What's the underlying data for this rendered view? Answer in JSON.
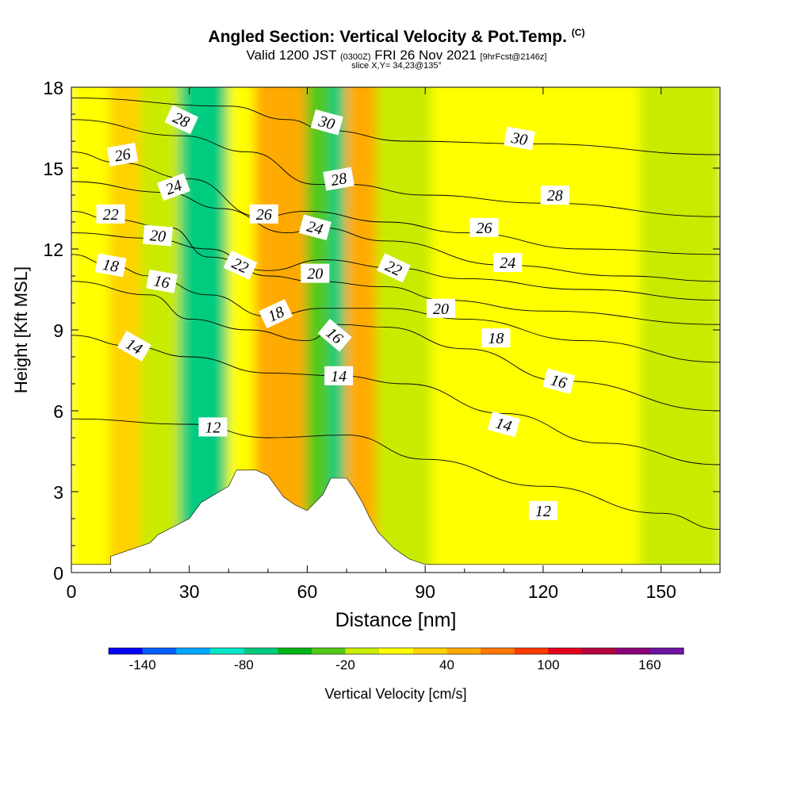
{
  "title": {
    "main": "Angled Section: Vertical Velocity & Pot.Temp.",
    "copyright": "(C)",
    "valid_prefix": "Valid 1200 JST",
    "valid_utc": "(0300Z)",
    "valid_date": "FRI 26 Nov 2021",
    "forecast": "[9hrFcst@2146z]",
    "slice": "slice X,Y= 34,23@135°"
  },
  "chart_data": {
    "type": "heatmap",
    "xlabel": "Distance [nm]",
    "ylabel": "Height [Kft MSL]",
    "xlim": [
      0,
      165
    ],
    "ylim": [
      0,
      18
    ],
    "x_ticks": [
      "0",
      "30",
      "60",
      "90",
      "120",
      "150"
    ],
    "y_ticks": [
      "0",
      "3",
      "6",
      "9",
      "12",
      "15",
      "18"
    ],
    "x_tick_values": [
      0,
      30,
      60,
      90,
      120,
      150
    ],
    "y_tick_values": [
      0,
      3,
      6,
      9,
      12,
      15,
      18
    ],
    "colorbar": {
      "label": "Vertical Velocity [cm/s]",
      "tick_labels": [
        "-140",
        "-80",
        "-20",
        "40",
        "100",
        "160"
      ],
      "tick_values": [
        -140,
        -80,
        -20,
        40,
        100,
        160
      ],
      "bounds": [
        -160,
        -140,
        -120,
        -100,
        -80,
        -60,
        -40,
        -20,
        0,
        20,
        40,
        60,
        80,
        100,
        120,
        140,
        160,
        180
      ],
      "colors": [
        "#0000ff",
        "#0060ff",
        "#00a8ff",
        "#00e6c8",
        "#00cc80",
        "#00b418",
        "#52c81a",
        "#c8eb00",
        "#ffff00",
        "#ffd200",
        "#ffaa00",
        "#ff7800",
        "#ff3c00",
        "#e6001e",
        "#b4003c",
        "#8c0078",
        "#6e14a0"
      ]
    },
    "velocity_bands": [
      {
        "x": [
          0,
          10
        ],
        "value": 10
      },
      {
        "x": [
          10,
          18
        ],
        "value": 30
      },
      {
        "x": [
          18,
          28
        ],
        "value": -10
      },
      {
        "x": [
          28,
          40
        ],
        "value": -70
      },
      {
        "x": [
          40,
          47
        ],
        "value": 10
      },
      {
        "x": [
          47,
          60
        ],
        "value": 50
      },
      {
        "x": [
          60,
          66
        ],
        "value": -30
      },
      {
        "x": [
          66,
          70
        ],
        "value": -70
      },
      {
        "x": [
          70,
          78
        ],
        "value": 40
      },
      {
        "x": [
          78,
          92
        ],
        "value": -20
      },
      {
        "x": [
          92,
          105
        ],
        "value": 10
      },
      {
        "x": [
          105,
          120
        ],
        "value": 0
      },
      {
        "x": [
          120,
          145
        ],
        "value": 10
      },
      {
        "x": [
          145,
          165
        ],
        "value": -10
      }
    ],
    "terrain": {
      "x": [
        0,
        10,
        10,
        20,
        22,
        30,
        33,
        40,
        42,
        47,
        50,
        52,
        54,
        57,
        60,
        62,
        64,
        66,
        68,
        70,
        72,
        74,
        76,
        78,
        80,
        82,
        84,
        86,
        88,
        90,
        165
      ],
      "y": [
        0.3,
        0.3,
        0.6,
        1.1,
        1.4,
        2.0,
        2.6,
        3.2,
        3.8,
        3.8,
        3.6,
        3.2,
        2.8,
        2.5,
        2.3,
        2.6,
        2.9,
        3.5,
        3.5,
        3.5,
        3.1,
        2.6,
        2.0,
        1.5,
        1.2,
        0.9,
        0.7,
        0.5,
        0.4,
        0.3,
        0.3
      ]
    },
    "isentropes": [
      {
        "label": "12",
        "x": [
          0,
          30,
          50,
          70,
          90,
          120,
          150,
          165
        ],
        "y": [
          5.7,
          5.5,
          5.0,
          5.1,
          4.2,
          3.2,
          2.2,
          1.6
        ]
      },
      {
        "label": "14",
        "x": [
          0,
          15,
          30,
          50,
          68,
          85,
          110,
          135,
          165
        ],
        "y": [
          8.8,
          8.4,
          8.0,
          7.4,
          7.3,
          7.0,
          5.9,
          4.8,
          4.0
        ]
      },
      {
        "label": "16",
        "x": [
          0,
          20,
          30,
          45,
          60,
          68,
          80,
          100,
          125,
          165
        ],
        "y": [
          10.8,
          10.3,
          9.4,
          9.0,
          8.6,
          9.2,
          9.1,
          8.3,
          7.1,
          6.0
        ]
      },
      {
        "label": "18",
        "x": [
          0,
          10,
          20,
          35,
          50,
          64,
          80,
          100,
          130,
          165
        ],
        "y": [
          11.8,
          11.4,
          11.0,
          10.3,
          9.5,
          9.8,
          9.8,
          9.4,
          8.6,
          7.8
        ]
      },
      {
        "label": "20",
        "x": [
          0,
          20,
          35,
          50,
          62,
          80,
          95,
          120,
          165
        ],
        "y": [
          12.6,
          12.4,
          12.0,
          11.0,
          10.8,
          10.6,
          10.1,
          9.7,
          9.2
        ]
      },
      {
        "label": "22",
        "x": [
          0,
          10,
          25,
          35,
          50,
          64,
          82,
          100,
          130,
          165
        ],
        "y": [
          13.4,
          13.1,
          12.8,
          11.7,
          11.2,
          11.6,
          11.3,
          10.9,
          10.5,
          10.1
        ]
      },
      {
        "label": "24",
        "x": [
          0,
          24,
          38,
          55,
          63,
          80,
          110,
          140,
          165
        ],
        "y": [
          14.5,
          14.1,
          13.5,
          12.6,
          12.8,
          12.3,
          11.4,
          11.0,
          10.8
        ]
      },
      {
        "label": "26",
        "x": [
          0,
          12,
          30,
          48,
          60,
          80,
          100,
          130,
          165
        ],
        "y": [
          15.6,
          15.2,
          14.6,
          13.2,
          13.4,
          13.0,
          12.6,
          12.0,
          11.8
        ]
      },
      {
        "label": "28",
        "x": [
          0,
          28,
          45,
          62,
          70,
          90,
          120,
          165
        ],
        "y": [
          16.8,
          16.2,
          15.6,
          14.4,
          14.4,
          14.0,
          13.7,
          13.2
        ]
      },
      {
        "label": "30",
        "x": [
          0,
          40,
          55,
          65,
          85,
          118,
          165
        ],
        "y": [
          17.6,
          17.3,
          16.8,
          16.4,
          16.0,
          15.9,
          15.5
        ]
      }
    ],
    "contour_labels": [
      {
        "text": "12",
        "x": 36,
        "y": 5.4,
        "angle": 0
      },
      {
        "text": "12",
        "x": 120,
        "y": 2.3,
        "angle": 0
      },
      {
        "text": "14",
        "x": 16,
        "y": 8.4,
        "angle": 30
      },
      {
        "text": "14",
        "x": 68,
        "y": 7.3,
        "angle": 0
      },
      {
        "text": "14",
        "x": 110,
        "y": 5.5,
        "angle": 15
      },
      {
        "text": "16",
        "x": 23,
        "y": 10.8,
        "angle": 10
      },
      {
        "text": "16",
        "x": 67,
        "y": 8.8,
        "angle": 40
      },
      {
        "text": "16",
        "x": 124,
        "y": 7.1,
        "angle": 15
      },
      {
        "text": "18",
        "x": 10,
        "y": 11.4,
        "angle": 10
      },
      {
        "text": "18",
        "x": 52,
        "y": 9.6,
        "angle": -25
      },
      {
        "text": "18",
        "x": 108,
        "y": 8.7,
        "angle": 0
      },
      {
        "text": "20",
        "x": 22,
        "y": 12.5,
        "angle": 5
      },
      {
        "text": "20",
        "x": 62,
        "y": 11.1,
        "angle": 0
      },
      {
        "text": "20",
        "x": 94,
        "y": 9.8,
        "angle": 0
      },
      {
        "text": "22",
        "x": 10,
        "y": 13.3,
        "angle": 0
      },
      {
        "text": "22",
        "x": 43,
        "y": 11.4,
        "angle": 25
      },
      {
        "text": "22",
        "x": 82,
        "y": 11.3,
        "angle": 25
      },
      {
        "text": "24",
        "x": 26,
        "y": 14.3,
        "angle": -20
      },
      {
        "text": "24",
        "x": 62,
        "y": 12.8,
        "angle": 15
      },
      {
        "text": "24",
        "x": 111,
        "y": 11.5,
        "angle": 0
      },
      {
        "text": "26",
        "x": 13,
        "y": 15.5,
        "angle": -10
      },
      {
        "text": "26",
        "x": 49,
        "y": 13.3,
        "angle": 0
      },
      {
        "text": "26",
        "x": 105,
        "y": 12.8,
        "angle": 0
      },
      {
        "text": "28",
        "x": 28,
        "y": 16.8,
        "angle": 25
      },
      {
        "text": "28",
        "x": 68,
        "y": 14.6,
        "angle": -10
      },
      {
        "text": "28",
        "x": 123,
        "y": 14.0,
        "angle": 0
      },
      {
        "text": "30",
        "x": 65,
        "y": 16.7,
        "angle": 15
      },
      {
        "text": "30",
        "x": 114,
        "y": 16.1,
        "angle": 10
      }
    ],
    "grid": false
  }
}
